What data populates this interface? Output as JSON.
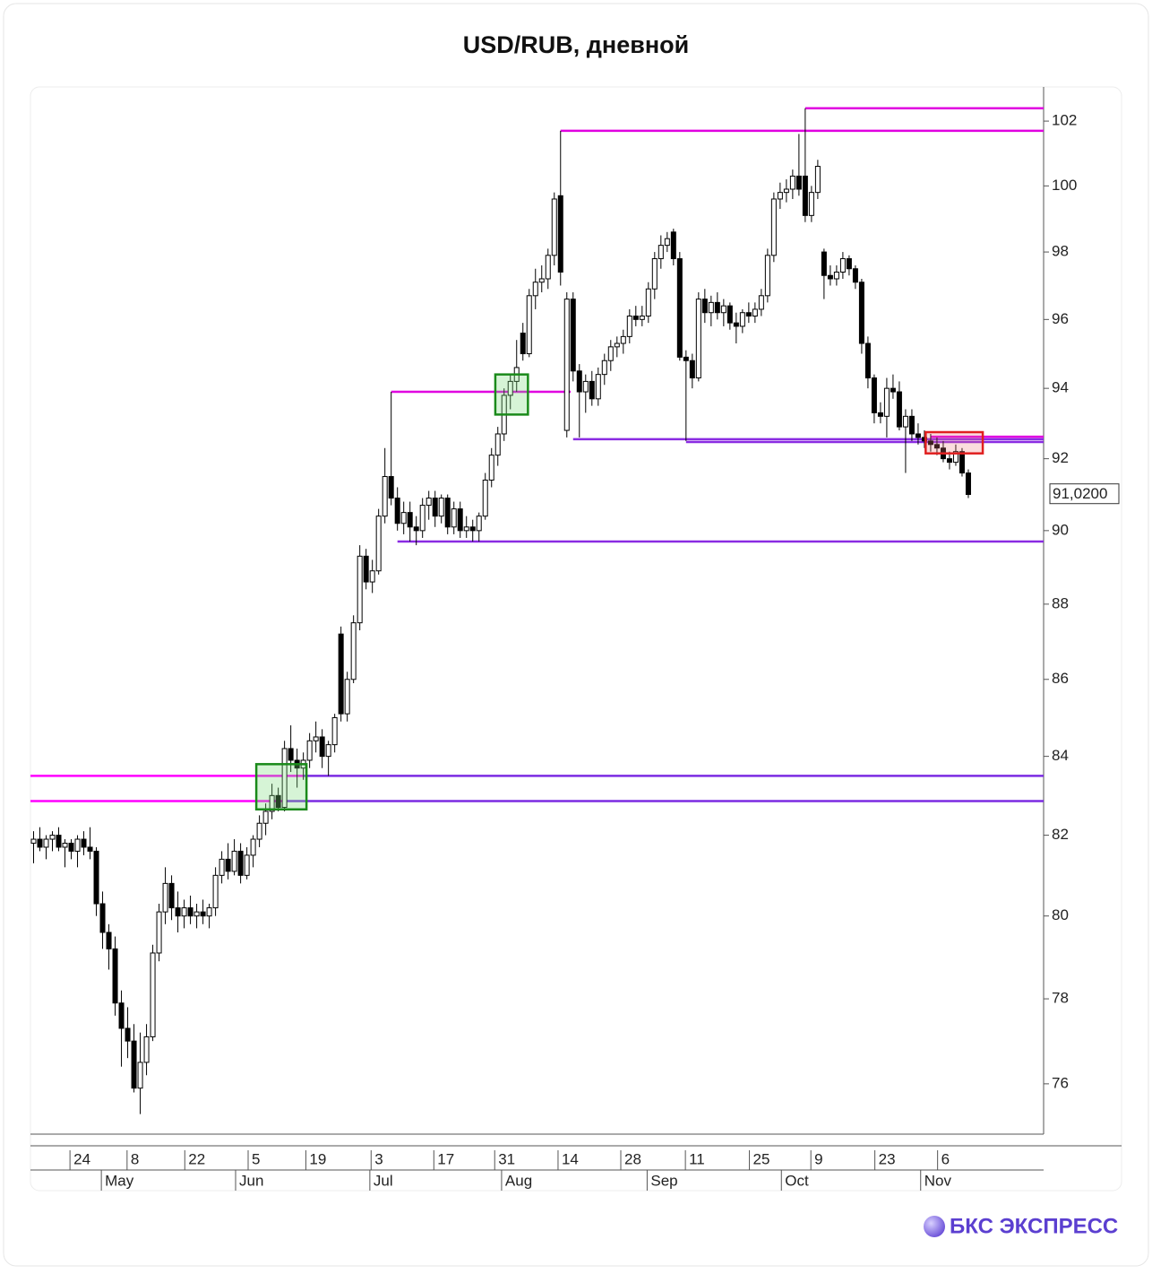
{
  "chart_data": {
    "type": "candlestick",
    "title": "USD/RUB, дневной",
    "brand": "БКС ЭКСПРЕСС",
    "log_scale": true,
    "ylim": [
      74.84,
      103.07
    ],
    "yticks": [
      76,
      78,
      80,
      82,
      84,
      86,
      88,
      90,
      92,
      94,
      96,
      98,
      100,
      102
    ],
    "xlim": [
      -0.5,
      161
    ],
    "xticks": [
      {
        "value": 5.8,
        "label": "24"
      },
      {
        "value": 14.9,
        "label": "8"
      },
      {
        "value": 24.1,
        "label": "22"
      },
      {
        "value": 34.2,
        "label": "5"
      },
      {
        "value": 43.4,
        "label": "19"
      },
      {
        "value": 53.8,
        "label": "3"
      },
      {
        "value": 63.8,
        "label": "17"
      },
      {
        "value": 73.5,
        "label": "31"
      },
      {
        "value": 83.6,
        "label": "14"
      },
      {
        "value": 93.6,
        "label": "28"
      },
      {
        "value": 103.9,
        "label": "11"
      },
      {
        "value": 114.1,
        "label": "25"
      },
      {
        "value": 123.9,
        "label": "9"
      },
      {
        "value": 134.1,
        "label": "23"
      },
      {
        "value": 144.1,
        "label": "6"
      }
    ],
    "month_ticks": [
      {
        "value": 10.8,
        "label": "May"
      },
      {
        "value": 32.2,
        "label": "Jun"
      },
      {
        "value": 53.6,
        "label": "Jul"
      },
      {
        "value": 74.6,
        "label": "Aug"
      },
      {
        "value": 97.8,
        "label": "Sep"
      },
      {
        "value": 119.2,
        "label": "Oct"
      },
      {
        "value": 141.4,
        "label": "Nov"
      }
    ],
    "last_price": {
      "value": 91.02,
      "label": "91,0200"
    },
    "up_color": "#ffffff",
    "down_color": "#000000",
    "x": [
      0,
      1,
      2,
      3,
      4,
      5,
      6,
      7,
      8,
      9,
      10,
      11,
      12,
      13,
      14,
      15,
      16,
      17,
      18,
      19,
      20,
      21,
      22,
      23,
      24,
      25,
      26,
      27,
      28,
      29,
      30,
      31,
      32,
      33,
      34,
      35,
      36,
      37,
      38,
      39,
      40,
      41,
      42,
      43,
      44,
      45,
      46,
      47,
      48,
      49,
      50,
      51,
      52,
      53,
      54,
      55,
      56,
      57,
      58,
      59,
      60,
      61,
      62,
      63,
      64,
      65,
      66,
      67,
      68,
      69,
      70,
      71,
      72,
      73,
      74,
      75,
      76,
      77,
      78,
      79,
      80,
      81,
      82,
      83,
      84,
      85,
      86,
      87,
      88,
      89,
      90,
      91,
      92,
      93,
      94,
      95,
      96,
      97,
      98,
      99,
      100,
      101,
      102,
      103,
      104,
      105,
      106,
      107,
      108,
      109,
      110,
      111,
      112,
      113,
      114,
      115,
      116,
      117,
      118,
      119,
      120,
      121,
      122,
      123,
      124,
      125,
      126,
      127,
      128,
      129,
      130,
      131,
      132,
      133,
      134,
      135,
      136,
      137,
      138,
      139,
      140,
      141,
      142,
      143,
      144,
      145,
      146,
      147,
      148,
      149
    ],
    "candles": [
      [
        81.8,
        82.1,
        81.3,
        81.9
      ],
      [
        81.9,
        82.2,
        81.6,
        81.7
      ],
      [
        81.7,
        82.0,
        81.4,
        81.9
      ],
      [
        81.9,
        82.1,
        81.6,
        82.0
      ],
      [
        82.0,
        82.2,
        81.6,
        81.7
      ],
      [
        81.7,
        81.9,
        81.2,
        81.8
      ],
      [
        81.8,
        81.9,
        81.4,
        81.6
      ],
      [
        81.6,
        82.0,
        81.2,
        81.9
      ],
      [
        81.9,
        82.1,
        81.5,
        81.7
      ],
      [
        81.7,
        82.2,
        81.4,
        81.6
      ],
      [
        81.6,
        81.7,
        80.0,
        80.3
      ],
      [
        80.3,
        80.6,
        79.2,
        79.6
      ],
      [
        79.6,
        79.8,
        78.7,
        79.2
      ],
      [
        79.2,
        79.5,
        77.6,
        77.9
      ],
      [
        77.9,
        78.2,
        76.4,
        77.3
      ],
      [
        77.3,
        77.8,
        76.6,
        77.0
      ],
      [
        77.0,
        77.4,
        75.8,
        75.9
      ],
      [
        75.9,
        77.2,
        75.3,
        76.5
      ],
      [
        76.5,
        77.4,
        76.2,
        77.1
      ],
      [
        77.1,
        79.3,
        77.0,
        79.1
      ],
      [
        79.1,
        80.3,
        78.9,
        80.1
      ],
      [
        80.1,
        81.2,
        79.8,
        80.8
      ],
      [
        80.8,
        81.0,
        79.9,
        80.2
      ],
      [
        80.2,
        80.6,
        79.6,
        80.0
      ],
      [
        80.0,
        80.4,
        79.7,
        80.2
      ],
      [
        80.2,
        80.5,
        79.8,
        80.0
      ],
      [
        80.0,
        80.3,
        79.7,
        80.1
      ],
      [
        80.1,
        80.4,
        79.8,
        80.0
      ],
      [
        80.0,
        80.3,
        79.7,
        80.2
      ],
      [
        80.2,
        81.2,
        80.0,
        81.0
      ],
      [
        81.0,
        81.6,
        80.8,
        81.4
      ],
      [
        81.4,
        81.8,
        80.9,
        81.1
      ],
      [
        81.1,
        81.9,
        81.0,
        81.6
      ],
      [
        81.6,
        81.8,
        80.8,
        81.0
      ],
      [
        81.0,
        81.7,
        80.9,
        81.5
      ],
      [
        81.5,
        82.0,
        81.2,
        81.9
      ],
      [
        81.9,
        82.5,
        81.7,
        82.3
      ],
      [
        82.3,
        82.8,
        82.0,
        82.6
      ],
      [
        82.6,
        83.3,
        82.4,
        83.0
      ],
      [
        83.0,
        83.2,
        82.6,
        82.7
      ],
      [
        82.7,
        84.4,
        82.6,
        84.2
      ],
      [
        84.2,
        84.8,
        83.6,
        83.9
      ],
      [
        83.9,
        84.2,
        83.2,
        83.7
      ],
      [
        83.7,
        84.1,
        83.4,
        83.9
      ],
      [
        83.9,
        84.6,
        83.7,
        84.4
      ],
      [
        84.4,
        84.9,
        84.1,
        84.5
      ],
      [
        84.5,
        84.7,
        83.7,
        84.0
      ],
      [
        84.0,
        84.4,
        83.5,
        84.3
      ],
      [
        84.3,
        85.1,
        84.1,
        85.0
      ],
      [
        87.2,
        87.4,
        84.9,
        85.1
      ],
      [
        85.1,
        86.2,
        84.9,
        86.0
      ],
      [
        86.0,
        87.7,
        85.9,
        87.5
      ],
      [
        87.5,
        89.6,
        87.3,
        89.3
      ],
      [
        89.3,
        89.5,
        88.4,
        88.6
      ],
      [
        88.6,
        89.2,
        88.3,
        88.9
      ],
      [
        88.9,
        90.6,
        88.8,
        90.4
      ],
      [
        90.4,
        92.3,
        90.2,
        91.5
      ],
      [
        91.5,
        93.9,
        90.7,
        90.9
      ],
      [
        90.9,
        91.2,
        90.0,
        90.2
      ],
      [
        90.2,
        90.8,
        89.9,
        90.5
      ],
      [
        90.5,
        90.8,
        89.7,
        90.1
      ],
      [
        90.1,
        90.4,
        89.6,
        90.0
      ],
      [
        90.0,
        90.9,
        89.8,
        90.7
      ],
      [
        90.7,
        91.1,
        90.3,
        90.9
      ],
      [
        90.9,
        91.1,
        90.1,
        90.4
      ],
      [
        90.4,
        91.0,
        90.2,
        90.9
      ],
      [
        90.9,
        91.0,
        89.9,
        90.1
      ],
      [
        90.1,
        90.8,
        89.9,
        90.6
      ],
      [
        90.6,
        90.8,
        89.8,
        90.0
      ],
      [
        90.0,
        90.4,
        89.8,
        90.1
      ],
      [
        90.1,
        90.3,
        89.7,
        90.0
      ],
      [
        90.0,
        90.5,
        89.7,
        90.4
      ],
      [
        90.4,
        91.6,
        90.3,
        91.4
      ],
      [
        91.4,
        92.3,
        91.2,
        92.1
      ],
      [
        92.1,
        92.9,
        91.8,
        92.7
      ],
      [
        92.7,
        94.0,
        92.5,
        93.8
      ],
      [
        93.8,
        94.4,
        93.4,
        94.2
      ],
      [
        94.2,
        95.4,
        93.9,
        94.6
      ],
      [
        95.6,
        95.9,
        94.8,
        95.0
      ],
      [
        95.0,
        96.9,
        94.9,
        96.7
      ],
      [
        96.7,
        97.5,
        96.3,
        97.1
      ],
      [
        97.1,
        97.6,
        96.8,
        97.2
      ],
      [
        97.2,
        98.1,
        96.9,
        97.9
      ],
      [
        97.9,
        99.8,
        97.6,
        99.6
      ],
      [
        99.7,
        101.7,
        97.0,
        97.4
      ],
      [
        92.8,
        96.8,
        92.6,
        96.6
      ],
      [
        96.6,
        96.8,
        94.2,
        94.5
      ],
      [
        94.5,
        94.7,
        92.6,
        93.9
      ],
      [
        93.9,
        94.4,
        93.3,
        94.2
      ],
      [
        94.2,
        94.5,
        93.5,
        93.7
      ],
      [
        93.7,
        94.6,
        93.5,
        94.4
      ],
      [
        94.4,
        95.0,
        94.1,
        94.8
      ],
      [
        94.8,
        95.4,
        94.5,
        95.2
      ],
      [
        95.2,
        95.5,
        94.9,
        95.3
      ],
      [
        95.3,
        95.7,
        95.0,
        95.5
      ],
      [
        95.5,
        96.3,
        95.3,
        96.1
      ],
      [
        96.1,
        96.4,
        95.8,
        96.0
      ],
      [
        96.0,
        96.4,
        95.8,
        96.1
      ],
      [
        96.1,
        97.1,
        95.9,
        96.9
      ],
      [
        96.9,
        98.0,
        96.6,
        97.8
      ],
      [
        97.8,
        98.5,
        97.5,
        98.2
      ],
      [
        98.2,
        98.6,
        98.0,
        98.4
      ],
      [
        98.6,
        98.7,
        97.6,
        97.8
      ],
      [
        97.8,
        98.0,
        94.8,
        94.9
      ],
      [
        94.9,
        95.1,
        92.5,
        94.8
      ],
      [
        94.8,
        95.0,
        94.0,
        94.3
      ],
      [
        94.3,
        96.8,
        94.2,
        96.6
      ],
      [
        96.6,
        96.9,
        95.9,
        96.2
      ],
      [
        96.2,
        96.7,
        95.8,
        96.5
      ],
      [
        96.5,
        96.8,
        96.0,
        96.2
      ],
      [
        96.2,
        96.6,
        95.8,
        96.4
      ],
      [
        96.4,
        96.5,
        95.7,
        95.9
      ],
      [
        95.9,
        96.2,
        95.3,
        95.8
      ],
      [
        95.8,
        96.3,
        95.6,
        96.2
      ],
      [
        96.2,
        96.5,
        95.9,
        96.1
      ],
      [
        96.1,
        96.5,
        95.9,
        96.3
      ],
      [
        96.3,
        96.9,
        96.1,
        96.7
      ],
      [
        96.7,
        98.1,
        96.5,
        97.9
      ],
      [
        97.9,
        99.8,
        97.7,
        99.6
      ],
      [
        99.6,
        100.1,
        99.3,
        99.8
      ],
      [
        99.8,
        100.2,
        99.5,
        99.9
      ],
      [
        99.9,
        100.5,
        99.6,
        100.3
      ],
      [
        100.3,
        101.6,
        99.7,
        99.9
      ],
      [
        100.3,
        102.4,
        98.9,
        99.1
      ],
      [
        99.1,
        100.0,
        98.9,
        99.8
      ],
      [
        99.8,
        100.8,
        99.6,
        100.6
      ],
      [
        98.0,
        98.1,
        96.6,
        97.3
      ],
      [
        97.3,
        97.6,
        97.0,
        97.2
      ],
      [
        97.2,
        97.6,
        97.0,
        97.4
      ],
      [
        97.4,
        98.0,
        97.2,
        97.8
      ],
      [
        97.8,
        97.9,
        97.3,
        97.5
      ],
      [
        97.5,
        97.6,
        96.9,
        97.1
      ],
      [
        97.1,
        97.2,
        95.0,
        95.3
      ],
      [
        95.3,
        95.5,
        94.0,
        94.3
      ],
      [
        94.3,
        94.4,
        93.0,
        93.3
      ],
      [
        93.3,
        93.6,
        93.0,
        93.2
      ],
      [
        93.2,
        94.3,
        92.6,
        94.0
      ],
      [
        94.0,
        94.4,
        93.7,
        93.9
      ],
      [
        93.9,
        94.2,
        92.8,
        92.9
      ],
      [
        92.9,
        93.4,
        91.6,
        93.2
      ],
      [
        93.2,
        93.4,
        92.5,
        92.7
      ],
      [
        92.7,
        93.0,
        92.4,
        92.6
      ],
      [
        92.6,
        92.8,
        92.3,
        92.5
      ],
      [
        92.5,
        92.7,
        92.2,
        92.4
      ],
      [
        92.4,
        92.6,
        92.1,
        92.3
      ],
      [
        92.3,
        92.5,
        91.9,
        92.0
      ],
      [
        92.0,
        92.2,
        91.7,
        91.9
      ],
      [
        91.9,
        92.4,
        91.8,
        92.2
      ],
      [
        92.2,
        92.3,
        91.5,
        91.6
      ],
      [
        91.6,
        91.7,
        90.9,
        91.0
      ]
    ],
    "levels": [
      {
        "value": 102.4,
        "from": 123,
        "to": 161,
        "color": "#e000e0"
      },
      {
        "value": 101.7,
        "from": 84,
        "to": 161,
        "color": "#e000e0"
      },
      {
        "value": 93.9,
        "from": 57,
        "to": 85.6,
        "color": "#e000e0"
      },
      {
        "value": 92.55,
        "from": 86,
        "to": 161,
        "color": "#8a2be2"
      },
      {
        "value": 92.47,
        "from": 104,
        "to": 161,
        "color": "#8a2be2"
      },
      {
        "value": 92.62,
        "from": 143,
        "to": 161,
        "color": "#e000e0"
      },
      {
        "value": 89.7,
        "from": 58,
        "to": 161,
        "color": "#8a2be2"
      },
      {
        "value": 83.5,
        "from": -0.5,
        "to": 43,
        "color": "#ff00ff"
      },
      {
        "value": 83.5,
        "from": 43,
        "to": 161,
        "color": "#7b2be2"
      },
      {
        "value": 82.86,
        "from": -0.5,
        "to": 40,
        "color": "#ff00ff"
      },
      {
        "value": 82.86,
        "from": 40,
        "to": 161,
        "color": "#7b2be2"
      }
    ],
    "boxes": [
      {
        "from": 35.5,
        "to": 43.5,
        "low": 82.65,
        "high": 83.8,
        "color": "#1a8a1a",
        "fill": "rgba(120,220,120,0.3)"
      },
      {
        "from": 73.6,
        "to": 78.8,
        "low": 93.25,
        "high": 94.4,
        "color": "#1a8a1a",
        "fill": "rgba(120,220,120,0.3)"
      },
      {
        "from": 142.2,
        "to": 151.3,
        "low": 92.15,
        "high": 92.75,
        "color": "#e02020",
        "fill": "rgba(240,120,120,0.25)"
      }
    ]
  }
}
